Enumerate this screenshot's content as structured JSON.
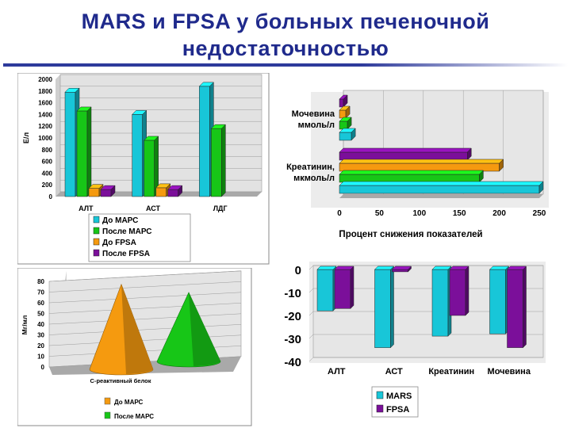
{
  "slide": {
    "title_line1": "MARS и FPSA у больных печеночной",
    "title_line2": "недостаточностью"
  },
  "colors": {
    "cyan": "#18c6d8",
    "green": "#17c617",
    "orange": "#f59a0f",
    "purple": "#7b0f9a",
    "title": "#1f2a8c"
  },
  "chart_data": [
    {
      "id": "enzymes",
      "type": "bar",
      "ylabel": "Е/л",
      "ylim": [
        0,
        2000
      ],
      "yticks": [
        "0",
        "200",
        "400",
        "600",
        "800",
        "1000",
        "1200",
        "1400",
        "1600",
        "1800",
        "2000"
      ],
      "categories": [
        "АЛТ",
        "АСТ",
        "ЛДГ"
      ],
      "series": [
        {
          "name": "До МАРС",
          "color": "cyan",
          "values": [
            1780,
            1400,
            1880
          ]
        },
        {
          "name": "После МАРС",
          "color": "green",
          "values": [
            1460,
            960,
            1160
          ]
        },
        {
          "name": "До FPSA",
          "color": "orange",
          "values": [
            140,
            150,
            null
          ]
        },
        {
          "name": "После FPSA",
          "color": "purple",
          "values": [
            120,
            120,
            null
          ]
        }
      ],
      "legend_position": "bottom"
    },
    {
      "id": "reduction",
      "type": "bar",
      "orientation": "horizontal",
      "xlabel": "Процент снижения показателей",
      "xlim": [
        0,
        250
      ],
      "xticks": [
        "0",
        "50",
        "100",
        "150",
        "200",
        "250"
      ],
      "categories": [
        "Мочевина ммоль/л",
        "Креатинин, мкмоль/л"
      ],
      "category_lines": [
        [
          "Мочевина",
          "ммоль/л"
        ],
        [
          "Креатинин,",
          "мкмоль/л"
        ]
      ],
      "series": [
        {
          "color": "purple",
          "values": [
            5,
            160
          ]
        },
        {
          "color": "orange",
          "values": [
            8,
            200
          ]
        },
        {
          "color": "green",
          "values": [
            10,
            175
          ]
        },
        {
          "color": "cyan",
          "values": [
            15,
            250
          ]
        }
      ]
    },
    {
      "id": "crp",
      "type": "bar",
      "shape": "cone",
      "ylabel": "Мг/мл",
      "ylim": [
        0,
        80
      ],
      "yticks": [
        "0",
        "10",
        "20",
        "30",
        "40",
        "50",
        "60",
        "70",
        "80"
      ],
      "categories": [
        "С-реактивный белок"
      ],
      "series": [
        {
          "name": "До МАРС",
          "color": "orange",
          "values": [
            74
          ]
        },
        {
          "name": "После МАРС",
          "color": "green",
          "values": [
            60
          ]
        }
      ],
      "legend_position": "bottom"
    },
    {
      "id": "change",
      "type": "bar",
      "ylim": [
        -40,
        0
      ],
      "yticks": [
        "0",
        "-10",
        "-20",
        "-30",
        "-40"
      ],
      "categories": [
        "АЛТ",
        "АСТ",
        "Креатинин",
        "Мочевина"
      ],
      "series": [
        {
          "name": "MARS",
          "color": "cyan",
          "values": [
            -18,
            -34,
            -29,
            -28
          ]
        },
        {
          "name": "FPSA",
          "color": "purple",
          "values": [
            -17,
            -1,
            -20,
            -34
          ]
        }
      ],
      "legend_position": "bottom"
    }
  ]
}
